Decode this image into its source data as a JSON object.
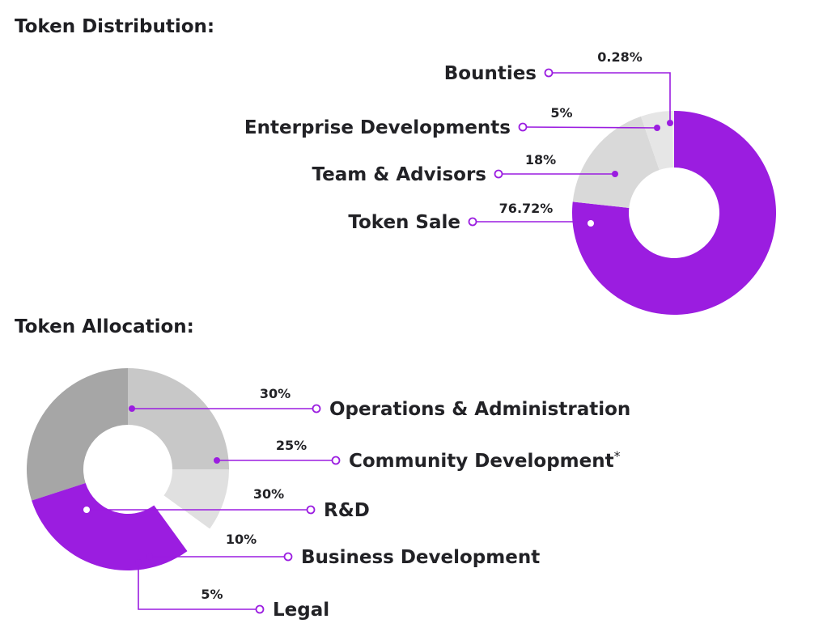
{
  "chart_data": [
    {
      "type": "pie",
      "title": "Token Distribution:",
      "donut": true,
      "slices": [
        {
          "label": "Token Sale",
          "value": 76.72,
          "value_label": "76.72%",
          "color": "#9b1de0"
        },
        {
          "label": "Team & Advisors",
          "value": 18,
          "value_label": "18%",
          "color": "#d9d9d9"
        },
        {
          "label": "Enterprise Developments",
          "value": 5,
          "value_label": "5%",
          "color": "#e6e6e6"
        },
        {
          "label": "Bounties",
          "value": 0.28,
          "value_label": "0.28%",
          "color": "#efefef"
        }
      ],
      "legend_placement": "left"
    },
    {
      "type": "pie",
      "title": "Token Allocation:",
      "donut": true,
      "slices": [
        {
          "label": "Operations & Administration",
          "value": 30,
          "value_label": "30%",
          "color": "#a6a6a6"
        },
        {
          "label": "Community Development",
          "value": 25,
          "value_label": "25%",
          "color": "#c8c8c8",
          "footnote_mark": "*"
        },
        {
          "label": "R&D",
          "value": 30,
          "value_label": "30%",
          "color": "#9b1de0"
        },
        {
          "label": "Business Development",
          "value": 10,
          "value_label": "10%",
          "color": "#e0e0e0"
        },
        {
          "label": "Legal",
          "value": 5,
          "value_label": "5%",
          "color": "#ffffff"
        }
      ],
      "legend_placement": "right"
    }
  ],
  "colors": {
    "accent": "#9b1de0",
    "text": "#222226"
  }
}
